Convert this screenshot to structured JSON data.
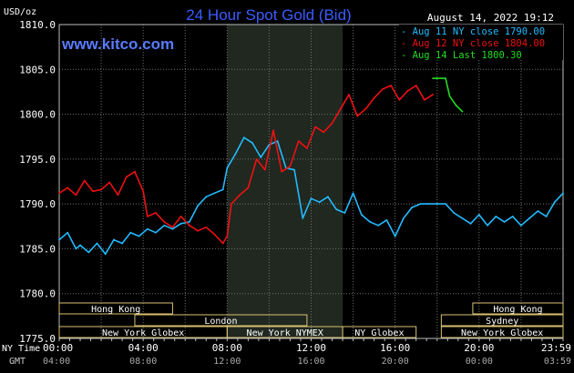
{
  "chart_data": {
    "type": "line",
    "title": "24 Hour Spot Gold (Bid)",
    "date_label": "August 14, 2022 19:12",
    "watermark": "www.kitco.com",
    "ylabel": "USD/oz",
    "ylim": [
      1775.0,
      1810.0
    ],
    "y_ticks": [
      "1775.0",
      "1780.0",
      "1785.0",
      "1790.0",
      "1795.0",
      "1800.0",
      "1805.0",
      "1810.0"
    ],
    "x_axis_label_primary": "NY Time",
    "x_axis_label_secondary": "GMT",
    "x_ticks_ny": [
      "00:00",
      "04:00",
      "08:00",
      "12:00",
      "16:00",
      "20:00",
      "23:59"
    ],
    "x_ticks_gmt": [
      "04:00",
      "08:00",
      "12:00",
      "16:00",
      "20:00",
      "00:00",
      "03:59"
    ],
    "xlim_hours": [
      0,
      24
    ],
    "grid": true,
    "highlight_band_hours": [
      8.0,
      13.5
    ],
    "legend_position": "top-right",
    "colors": {
      "background": "#000000",
      "grid": "#707070",
      "title": "#3a5cff",
      "watermark": "#5a7cff",
      "band": "#202820",
      "session_box": "#d8c070",
      "series_aug11": "#22bbff",
      "series_aug12": "#ee1111",
      "series_aug14": "#22dd22"
    },
    "series": [
      {
        "name": "Aug 11 NY close 1790.00",
        "color": "#22bbff",
        "x": [
          0.0,
          0.4,
          0.8,
          1.0,
          1.4,
          1.8,
          2.2,
          2.6,
          3.0,
          3.4,
          3.8,
          4.2,
          4.6,
          5.0,
          5.4,
          5.8,
          6.2,
          6.6,
          7.0,
          7.4,
          7.8,
          8.0,
          8.4,
          8.8,
          9.2,
          9.6,
          10.0,
          10.4,
          10.8,
          11.2,
          11.6,
          12.0,
          12.4,
          12.8,
          13.2,
          13.6,
          14.0,
          14.4,
          14.8,
          15.2,
          15.6,
          16.0,
          16.4,
          16.8,
          17.2,
          17.6,
          18.0,
          18.4,
          18.8,
          19.2,
          19.6,
          20.0,
          20.4,
          20.8,
          21.2,
          21.6,
          22.0,
          22.4,
          22.8,
          23.2,
          23.6,
          24.0
        ],
        "y": [
          1786.0,
          1786.8,
          1785.0,
          1785.4,
          1784.6,
          1785.6,
          1784.4,
          1786.0,
          1785.6,
          1786.8,
          1786.4,
          1787.2,
          1786.8,
          1787.6,
          1787.2,
          1787.8,
          1788.0,
          1789.8,
          1790.8,
          1791.2,
          1791.6,
          1794.0,
          1795.6,
          1797.4,
          1796.8,
          1795.2,
          1796.6,
          1797.0,
          1794.0,
          1793.8,
          1788.4,
          1790.6,
          1790.2,
          1790.8,
          1789.4,
          1789.0,
          1791.2,
          1788.8,
          1788.0,
          1787.6,
          1788.2,
          1786.4,
          1788.4,
          1789.6,
          1790.0,
          1790.0,
          1790.0,
          1790.0,
          1789.0,
          1788.4,
          1787.8,
          1788.8,
          1787.6,
          1788.6,
          1788.0,
          1788.6,
          1787.6,
          1788.4,
          1789.2,
          1788.6,
          1790.2,
          1791.2
        ]
      },
      {
        "name": "Aug 12 NY close 1804.00",
        "color": "#ee1111",
        "x": [
          0.0,
          0.4,
          0.8,
          1.2,
          1.6,
          2.0,
          2.4,
          2.8,
          3.2,
          3.6,
          4.0,
          4.2,
          4.6,
          5.0,
          5.4,
          5.8,
          6.2,
          6.6,
          7.0,
          7.4,
          7.8,
          8.0,
          8.2,
          8.6,
          9.0,
          9.4,
          9.8,
          10.2,
          10.6,
          11.0,
          11.4,
          11.8,
          12.2,
          12.6,
          13.0,
          13.4,
          13.8,
          14.2,
          14.6,
          15.0,
          15.4,
          15.8,
          16.2,
          16.6,
          17.0,
          17.4,
          17.8
        ],
        "y": [
          1791.2,
          1791.8,
          1791.0,
          1792.6,
          1791.4,
          1791.6,
          1792.4,
          1791.0,
          1793.0,
          1793.6,
          1791.4,
          1788.6,
          1789.0,
          1788.0,
          1787.4,
          1788.6,
          1787.6,
          1787.0,
          1787.4,
          1786.6,
          1785.6,
          1786.4,
          1790.0,
          1791.0,
          1791.8,
          1795.0,
          1793.8,
          1798.2,
          1793.6,
          1794.2,
          1797.0,
          1796.2,
          1798.6,
          1798.0,
          1799.0,
          1800.6,
          1802.2,
          1799.8,
          1800.6,
          1801.8,
          1802.8,
          1803.2,
          1801.6,
          1802.6,
          1803.2,
          1801.6,
          1802.2
        ]
      },
      {
        "name": "Aug 14 Last 1800.30",
        "color": "#22dd22",
        "x": [
          17.8,
          18.0,
          18.4,
          18.6,
          18.9,
          19.2
        ],
        "y": [
          1804.0,
          1804.0,
          1804.0,
          1802.0,
          1801.0,
          1800.3
        ]
      }
    ],
    "sessions": {
      "row1": [
        {
          "label": "Hong Kong",
          "start": 0.0,
          "end": 5.4
        },
        {
          "label": "Hong Kong",
          "start": 19.7,
          "end": 24.0
        }
      ],
      "row2": [
        {
          "label": "London",
          "start": 3.6,
          "end": 11.8
        },
        {
          "label": "Sydney",
          "start": 18.2,
          "end": 24.0
        }
      ],
      "row3": [
        {
          "label": "New York Globex",
          "start": 0.0,
          "end": 8.0
        },
        {
          "label": "New York NYMEX",
          "start": 8.0,
          "end": 13.5
        },
        {
          "label": "NY Globex",
          "start": 13.5,
          "end": 17.0
        },
        {
          "label": "New York Globex",
          "start": 18.2,
          "end": 24.0
        }
      ]
    }
  }
}
